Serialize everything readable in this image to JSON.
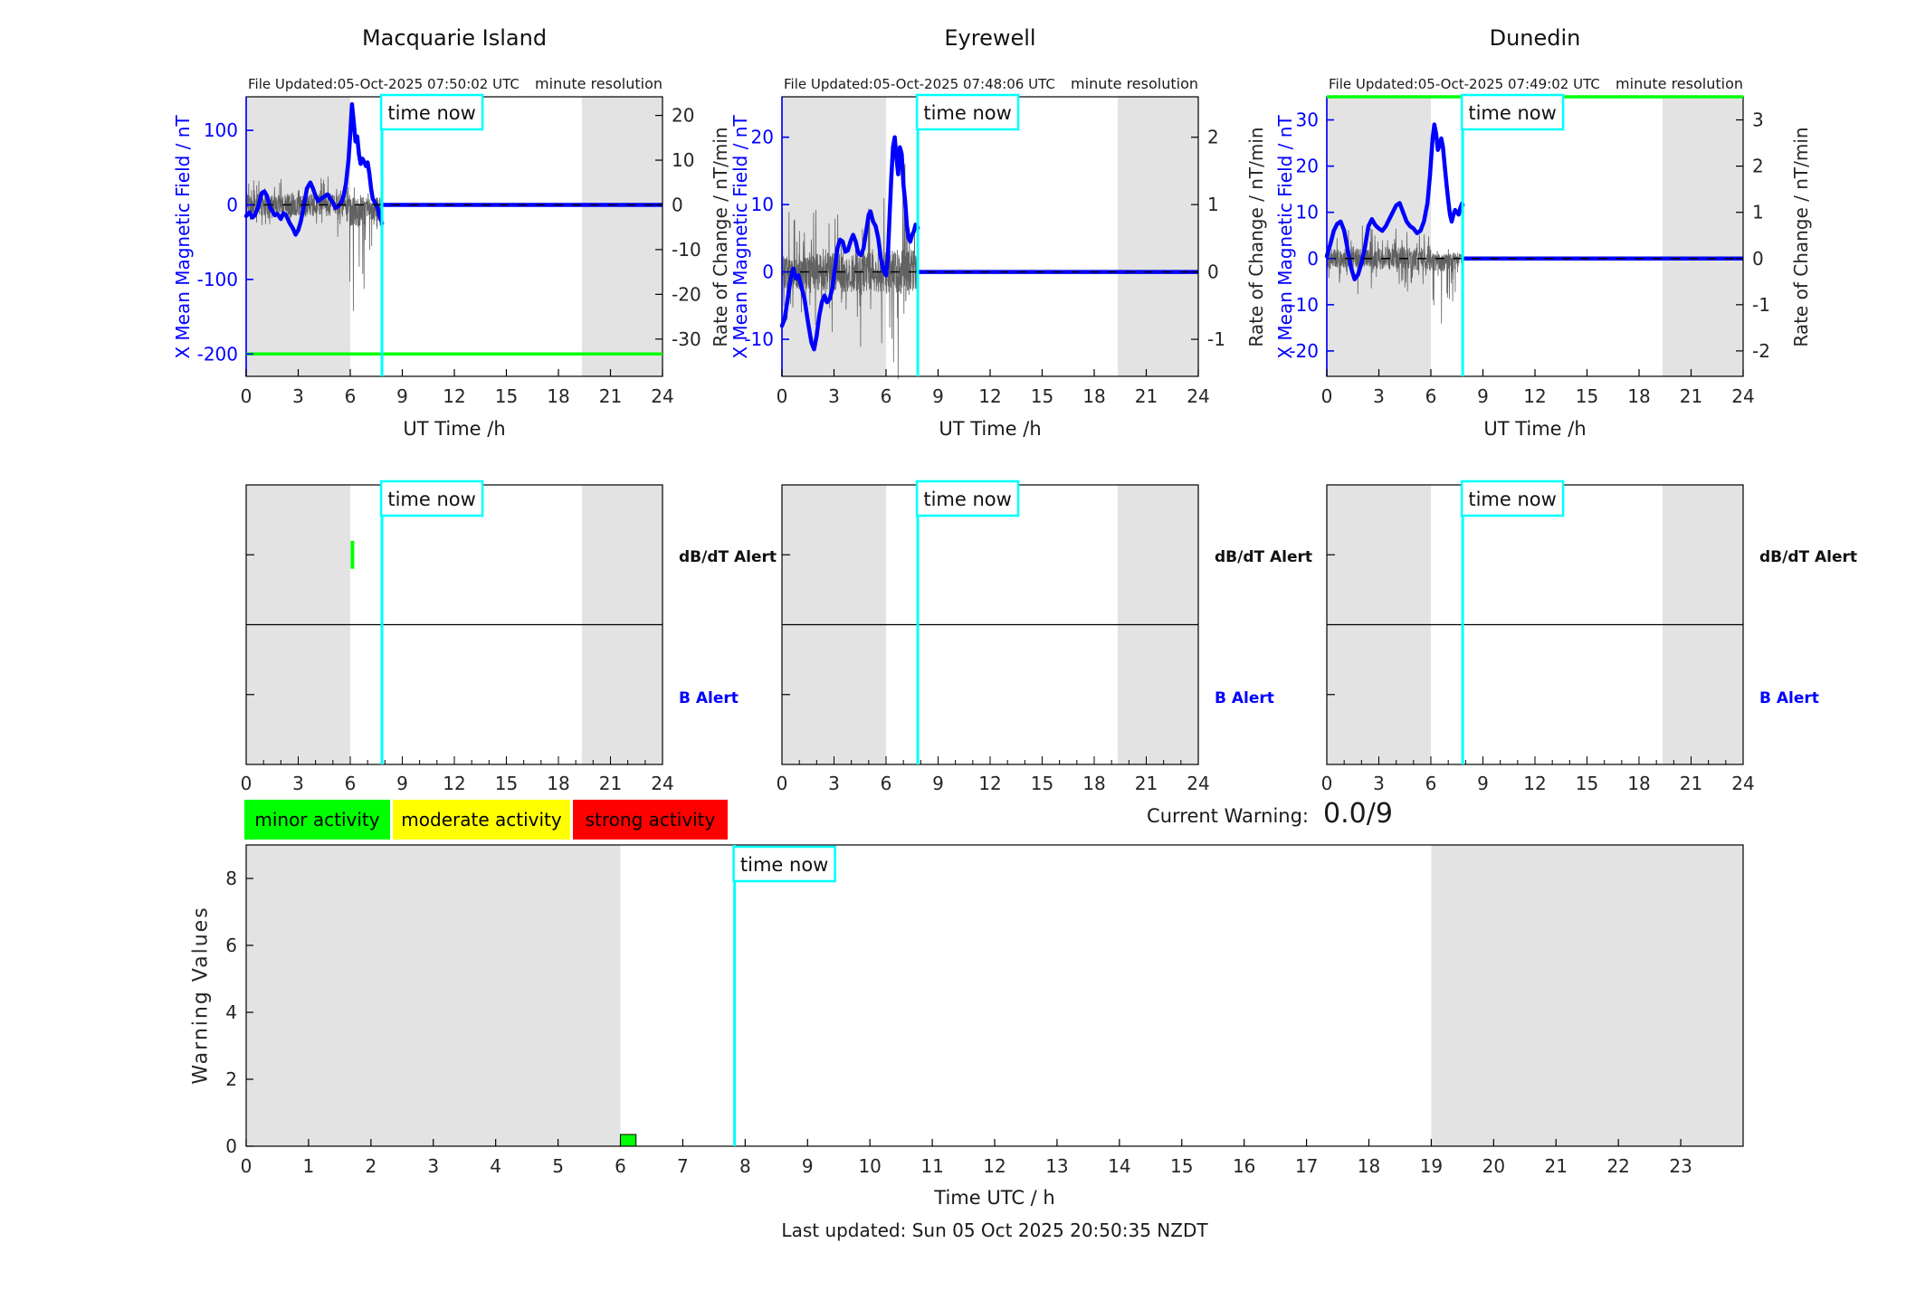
{
  "time_now_label": "time now",
  "colors": {
    "blue": "#0000FF",
    "cyan": "#00FFFF",
    "green": "#00FF00",
    "yellow": "#FFFF00",
    "red": "#FF0000",
    "night_band": "#E3E3E3",
    "axis": "#000000",
    "tick_text": "#262626",
    "noise": "#5a5a5a"
  },
  "stations": [
    {
      "title": "Macquarie Island",
      "file_updated": "File Updated:05-Oct-2025 07:50:02 UTC",
      "resolution_label": "minute resolution",
      "ylabel_left": "X Mean Magnetic Field / nT",
      "ylabel_right": "Rate of Change / nT/min",
      "xlabel": "UT Time /h"
    },
    {
      "title": "Eyrewell",
      "file_updated": "File Updated:05-Oct-2025 07:48:06 UTC",
      "resolution_label": "minute resolution",
      "ylabel_left": "X Mean Magnetic Field / nT",
      "ylabel_right": "Rate of Change / nT/min",
      "xlabel": "UT Time /h"
    },
    {
      "title": "Dunedin",
      "file_updated": "File Updated:05-Oct-2025 07:49:02 UTC",
      "resolution_label": "minute resolution",
      "ylabel_left": "X Mean Magnetic Field / nT",
      "ylabel_right": "Rate of Change / nT/min",
      "xlabel": "UT Time /h"
    }
  ],
  "alert_labels": {
    "dbdt": "dB/dT Alert",
    "b": "B Alert"
  },
  "activity_legend": [
    {
      "label": "minor activity",
      "color": "#00FF00"
    },
    {
      "label": "moderate activity",
      "color": "#FFFF00"
    },
    {
      "label": "strong activity",
      "color": "#FF0000"
    }
  ],
  "current_warning": {
    "label": "Current Warning:",
    "value": "0.0/9"
  },
  "warning_chart_labels": {
    "ylabel": "Warning Values",
    "xlabel": "Time UTC / h"
  },
  "footer": {
    "last_updated": "Last updated: Sun 05 Oct 2025 20:50:35 NZDT"
  },
  "chart_data": [
    {
      "type": "line",
      "station": "Macquarie Island",
      "title": "Macquarie Island",
      "xlabel": "UT Time /h",
      "ylabel": "X Mean Magnetic Field / nT",
      "ylabel_right": "Rate of Change / nT/min",
      "xlim": [
        0,
        24
      ],
      "xticks": [
        0,
        3,
        6,
        9,
        12,
        15,
        18,
        21,
        24
      ],
      "ylim": [
        -230,
        145
      ],
      "yticks_left": [
        100,
        0,
        -100,
        -200
      ],
      "right_axis_divisor": 6,
      "yticks_right": [
        20,
        10,
        0,
        -10,
        -20,
        -30
      ],
      "night_bands": [
        [
          0,
          6
        ],
        [
          19.35,
          24
        ]
      ],
      "green_threshold_line": -200,
      "time_now": 7.83,
      "zero_line": 0,
      "mean_field_series": [
        [
          0,
          -15
        ],
        [
          0.2,
          -10
        ],
        [
          0.35,
          -17
        ],
        [
          0.5,
          -14
        ],
        [
          0.7,
          -2
        ],
        [
          0.9,
          16
        ],
        [
          1.05,
          18
        ],
        [
          1.2,
          12
        ],
        [
          1.35,
          -2
        ],
        [
          1.5,
          -8
        ],
        [
          1.65,
          -14
        ],
        [
          1.8,
          -12
        ],
        [
          2.0,
          -19
        ],
        [
          2.15,
          -11
        ],
        [
          2.3,
          -14
        ],
        [
          2.5,
          -24
        ],
        [
          2.7,
          -32
        ],
        [
          2.85,
          -40
        ],
        [
          3.0,
          -34
        ],
        [
          3.15,
          -22
        ],
        [
          3.3,
          -4
        ],
        [
          3.5,
          22
        ],
        [
          3.7,
          30
        ],
        [
          3.85,
          22
        ],
        [
          4.0,
          12
        ],
        [
          4.15,
          5
        ],
        [
          4.3,
          8
        ],
        [
          4.5,
          11
        ],
        [
          4.7,
          14
        ],
        [
          4.85,
          8
        ],
        [
          5.0,
          3
        ],
        [
          5.15,
          -4
        ],
        [
          5.3,
          -2
        ],
        [
          5.45,
          2
        ],
        [
          5.6,
          10
        ],
        [
          5.75,
          28
        ],
        [
          5.9,
          60
        ],
        [
          6.0,
          95
        ],
        [
          6.1,
          135
        ],
        [
          6.2,
          112
        ],
        [
          6.3,
          85
        ],
        [
          6.4,
          92
        ],
        [
          6.5,
          68
        ],
        [
          6.6,
          55
        ],
        [
          6.7,
          62
        ],
        [
          6.8,
          58
        ],
        [
          6.9,
          52
        ],
        [
          7.0,
          57
        ],
        [
          7.1,
          42
        ],
        [
          7.2,
          22
        ],
        [
          7.3,
          8
        ],
        [
          7.45,
          2
        ],
        [
          7.6,
          -6
        ],
        [
          7.7,
          -16
        ],
        [
          7.8,
          -22
        ],
        [
          7.83,
          -25
        ]
      ],
      "flat_after_time_now": 0,
      "rate_noise": {
        "seed": 11,
        "base": [
          [
            0,
            2.5
          ],
          [
            5.5,
            2.5
          ],
          [
            6.0,
            5
          ],
          [
            7.83,
            5
          ]
        ],
        "spikes": [
          [
            0,
            4
          ],
          [
            5.5,
            5
          ],
          [
            5.9,
            12
          ],
          [
            6.05,
            38
          ],
          [
            6.4,
            25
          ],
          [
            6.9,
            20
          ],
          [
            7.3,
            12
          ],
          [
            7.83,
            8
          ]
        ],
        "spike_prob": 0.13,
        "neg_bias_after": 5.9
      }
    },
    {
      "type": "line",
      "station": "Eyrewell",
      "title": "Eyrewell",
      "xlabel": "UT Time /h",
      "ylabel": "X Mean Magnetic Field / nT",
      "ylabel_right": "Rate of Change / nT/min",
      "xlim": [
        0,
        24
      ],
      "xticks": [
        0,
        3,
        6,
        9,
        12,
        15,
        18,
        21,
        24
      ],
      "ylim": [
        -15.5,
        26
      ],
      "yticks_left": [
        20,
        10,
        0,
        -10
      ],
      "right_axis_divisor": 10,
      "yticks_right": [
        2,
        1,
        0,
        -1
      ],
      "night_bands": [
        [
          0,
          6
        ],
        [
          19.35,
          24
        ]
      ],
      "green_threshold_line": null,
      "time_now": 7.83,
      "zero_line": 0,
      "mean_field_series": [
        [
          0,
          -8
        ],
        [
          0.15,
          -7
        ],
        [
          0.3,
          -4.5
        ],
        [
          0.5,
          -1
        ],
        [
          0.65,
          0.5
        ],
        [
          0.8,
          -1
        ],
        [
          0.95,
          -0.5
        ],
        [
          1.1,
          -2
        ],
        [
          1.3,
          -4
        ],
        [
          1.5,
          -7.5
        ],
        [
          1.7,
          -10.5
        ],
        [
          1.85,
          -11.5
        ],
        [
          2.0,
          -9.5
        ],
        [
          2.15,
          -6.5
        ],
        [
          2.3,
          -4.5
        ],
        [
          2.45,
          -3.5
        ],
        [
          2.6,
          -4.5
        ],
        [
          2.75,
          -4
        ],
        [
          2.9,
          -2.5
        ],
        [
          3.05,
          0.5
        ],
        [
          3.2,
          3.5
        ],
        [
          3.35,
          4.8
        ],
        [
          3.5,
          4.5
        ],
        [
          3.65,
          3
        ],
        [
          3.8,
          3.2
        ],
        [
          3.95,
          4.5
        ],
        [
          4.1,
          5.5
        ],
        [
          4.25,
          4.5
        ],
        [
          4.4,
          2.8
        ],
        [
          4.55,
          2.5
        ],
        [
          4.7,
          3.5
        ],
        [
          4.85,
          6
        ],
        [
          5.0,
          8.5
        ],
        [
          5.1,
          9
        ],
        [
          5.25,
          7.5
        ],
        [
          5.4,
          6.8
        ],
        [
          5.55,
          5
        ],
        [
          5.7,
          2
        ],
        [
          5.85,
          0.2
        ],
        [
          6.0,
          -0.5
        ],
        [
          6.1,
          2
        ],
        [
          6.2,
          8
        ],
        [
          6.3,
          14
        ],
        [
          6.4,
          18.5
        ],
        [
          6.5,
          20
        ],
        [
          6.6,
          17
        ],
        [
          6.7,
          14.5
        ],
        [
          6.8,
          18.5
        ],
        [
          6.9,
          17.5
        ],
        [
          7.0,
          13
        ],
        [
          7.1,
          10.5
        ],
        [
          7.2,
          7
        ],
        [
          7.3,
          5
        ],
        [
          7.4,
          4.5
        ],
        [
          7.5,
          5.5
        ],
        [
          7.6,
          6
        ],
        [
          7.7,
          7
        ],
        [
          7.8,
          6.8
        ],
        [
          7.83,
          6.5
        ]
      ],
      "flat_after_time_now": 0,
      "rate_noise": {
        "seed": 23,
        "base": [
          [
            0,
            0.25
          ],
          [
            7.83,
            0.35
          ]
        ],
        "spikes": [
          [
            0,
            0.8
          ],
          [
            3,
            0.8
          ],
          [
            5,
            0.9
          ],
          [
            6.3,
            1.2
          ],
          [
            7.0,
            1.35
          ],
          [
            7.83,
            1.0
          ]
        ],
        "spike_prob": 0.15,
        "neg_bias_after": null
      }
    },
    {
      "type": "line",
      "station": "Dunedin",
      "title": "Dunedin",
      "xlabel": "UT Time /h",
      "ylabel": "X Mean Magnetic Field / nT",
      "ylabel_right": "Rate of Change / nT/min",
      "xlim": [
        0,
        24
      ],
      "xticks": [
        0,
        3,
        6,
        9,
        12,
        15,
        18,
        21,
        24
      ],
      "ylim": [
        -25.5,
        35
      ],
      "yticks_left": [
        30,
        20,
        10,
        0,
        -10,
        -20
      ],
      "right_axis_divisor": 10,
      "yticks_right": [
        3,
        2,
        1,
        0,
        -1,
        -2
      ],
      "night_bands": [
        [
          0,
          6
        ],
        [
          19.35,
          24
        ]
      ],
      "green_threshold_line": 35,
      "time_now": 7.83,
      "zero_line": 0,
      "mean_field_series": [
        [
          0,
          0.5
        ],
        [
          0.2,
          3
        ],
        [
          0.4,
          6
        ],
        [
          0.6,
          7.5
        ],
        [
          0.8,
          8
        ],
        [
          1.0,
          6
        ],
        [
          1.2,
          2
        ],
        [
          1.4,
          -2
        ],
        [
          1.6,
          -4.5
        ],
        [
          1.8,
          -3.5
        ],
        [
          2.0,
          -1
        ],
        [
          2.2,
          2.5
        ],
        [
          2.4,
          7
        ],
        [
          2.6,
          8.5
        ],
        [
          2.8,
          7.2
        ],
        [
          3.0,
          6.5
        ],
        [
          3.2,
          6
        ],
        [
          3.4,
          7
        ],
        [
          3.6,
          8.5
        ],
        [
          3.8,
          10
        ],
        [
          4.0,
          11.5
        ],
        [
          4.2,
          12
        ],
        [
          4.4,
          10
        ],
        [
          4.6,
          8
        ],
        [
          4.8,
          7
        ],
        [
          5.0,
          6.5
        ],
        [
          5.2,
          5.5
        ],
        [
          5.4,
          6
        ],
        [
          5.6,
          8
        ],
        [
          5.8,
          12
        ],
        [
          5.95,
          18
        ],
        [
          6.1,
          26
        ],
        [
          6.2,
          29
        ],
        [
          6.3,
          27
        ],
        [
          6.4,
          23.5
        ],
        [
          6.5,
          24.5
        ],
        [
          6.6,
          26
        ],
        [
          6.7,
          24
        ],
        [
          6.8,
          20
        ],
        [
          6.9,
          16
        ],
        [
          7.0,
          12.5
        ],
        [
          7.1,
          9.5
        ],
        [
          7.2,
          8
        ],
        [
          7.3,
          9.5
        ],
        [
          7.4,
          10.5
        ],
        [
          7.5,
          10
        ],
        [
          7.6,
          9.5
        ],
        [
          7.7,
          11
        ],
        [
          7.8,
          12
        ],
        [
          7.83,
          11.5
        ]
      ],
      "flat_after_time_now": 0,
      "rate_noise": {
        "seed": 37,
        "base": [
          [
            0,
            0.2
          ],
          [
            7.83,
            0.3
          ]
        ],
        "spikes": [
          [
            0,
            0.5
          ],
          [
            2,
            0.6
          ],
          [
            4,
            0.6
          ],
          [
            5.8,
            0.9
          ],
          [
            6.6,
            1.25
          ],
          [
            7.2,
            1.1
          ],
          [
            7.83,
            0.8
          ]
        ],
        "spike_prob": 0.15,
        "neg_bias_after": 6.0
      }
    },
    {
      "type": "timeline",
      "station": "Macquarie Island",
      "rows": [
        "dB/dT Alert",
        "B Alert"
      ],
      "xlim": [
        0,
        24
      ],
      "xticks": [
        0,
        3,
        6,
        9,
        12,
        15,
        18,
        21,
        24
      ],
      "minor_tick_step": 1,
      "night_bands": [
        [
          0,
          6
        ],
        [
          19.35,
          24
        ]
      ],
      "time_now": 7.83,
      "events": [
        {
          "row": "dB/dT Alert",
          "x_start": 6.02,
          "x_end": 6.22,
          "level": 0.75,
          "color": "#00FF00"
        }
      ]
    },
    {
      "type": "timeline",
      "station": "Eyrewell",
      "rows": [
        "dB/dT Alert",
        "B Alert"
      ],
      "xlim": [
        0,
        24
      ],
      "xticks": [
        0,
        3,
        6,
        9,
        12,
        15,
        18,
        21,
        24
      ],
      "minor_tick_step": 1,
      "night_bands": [
        [
          0,
          6
        ],
        [
          19.35,
          24
        ]
      ],
      "time_now": 7.83,
      "events": []
    },
    {
      "type": "timeline",
      "station": "Dunedin",
      "rows": [
        "dB/dT Alert",
        "B Alert"
      ],
      "xlim": [
        0,
        24
      ],
      "xticks": [
        0,
        3,
        6,
        9,
        12,
        15,
        18,
        21,
        24
      ],
      "minor_tick_step": 1,
      "night_bands": [
        [
          0,
          6
        ],
        [
          19.35,
          24
        ]
      ],
      "time_now": 7.83,
      "events": []
    },
    {
      "type": "bar",
      "title": "Warning Values",
      "ylabel": "Warning Values",
      "xlabel": "Time UTC / h",
      "xlim": [
        0,
        24
      ],
      "ylim": [
        0,
        9
      ],
      "yticks": [
        0,
        2,
        4,
        6,
        8
      ],
      "xticks": [
        0,
        1,
        2,
        3,
        4,
        5,
        6,
        7,
        8,
        9,
        10,
        11,
        12,
        13,
        14,
        15,
        16,
        17,
        18,
        19,
        20,
        21,
        22,
        23
      ],
      "night_bands": [
        [
          0,
          6
        ],
        [
          19,
          24
        ]
      ],
      "time_now": 7.83,
      "bars": [
        {
          "x": 6.0,
          "width": 0.25,
          "height": 0.35,
          "color": "#00FF00"
        }
      ],
      "current_warning_value": 0.0,
      "current_warning_max": 9
    }
  ]
}
